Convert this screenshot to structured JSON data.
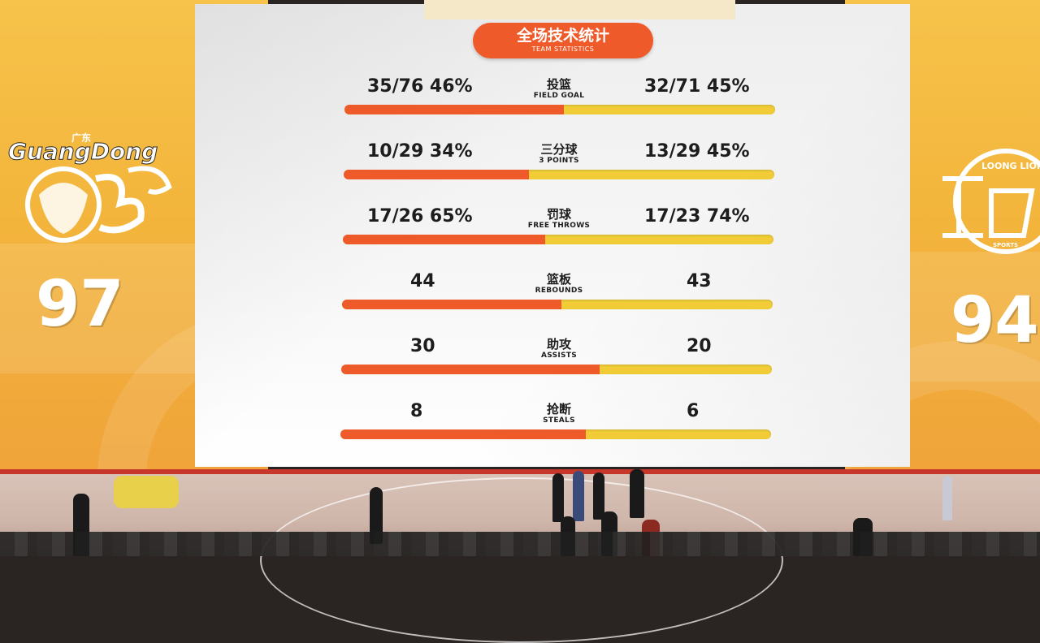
{
  "title": {
    "zh": "全场技术统计",
    "en": "TEAM STATISTICS"
  },
  "teams": {
    "home": {
      "logo_name": "GuangDong",
      "logo_zh": "广东",
      "score": "97"
    },
    "away": {
      "logo_name": "LOONG LIONS",
      "logo_sub": "SPORTS",
      "score": "94"
    }
  },
  "stats": [
    {
      "zh": "投篮",
      "en": "FIELD GOAL",
      "left": "35/76  46%",
      "right": "32/71  45%",
      "left_share": 0.51
    },
    {
      "zh": "三分球",
      "en": "3 POINTS",
      "left": "10/29  34%",
      "right": "13/29  45%",
      "left_share": 0.43
    },
    {
      "zh": "罚球",
      "en": "FREE THROWS",
      "left": "17/26  65%",
      "right": "17/23  74%",
      "left_share": 0.47
    },
    {
      "zh": "篮板",
      "en": "REBOUNDS",
      "left": "44",
      "right": "43",
      "left_share": 0.51
    },
    {
      "zh": "助攻",
      "en": "ASSISTS",
      "left": "30",
      "right": "20",
      "left_share": 0.6
    },
    {
      "zh": "抢断",
      "en": "STEALS",
      "left": "8",
      "right": "6",
      "left_share": 0.57
    }
  ],
  "colors": {
    "home_bar": "#ef5a2a",
    "away_bar": "#f1cc37",
    "title_pill": "#ef5a2a",
    "panel": "#f3b53c"
  }
}
